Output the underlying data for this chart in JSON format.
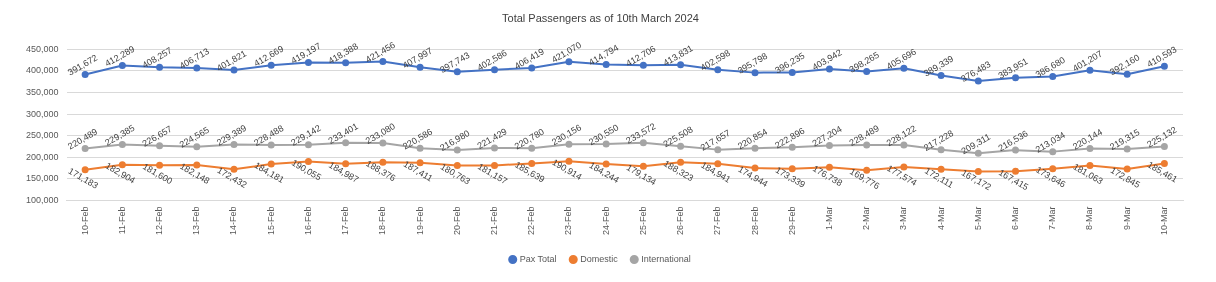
{
  "chart_data": {
    "type": "line",
    "title": "Total Passengers as of 10th March 2024",
    "categories": [
      "10-Feb",
      "11-Feb",
      "12-Feb",
      "13-Feb",
      "14-Feb",
      "15-Feb",
      "16-Feb",
      "17-Feb",
      "18-Feb",
      "19-Feb",
      "20-Feb",
      "21-Feb",
      "22-Feb",
      "23-Feb",
      "24-Feb",
      "25-Feb",
      "26-Feb",
      "27-Feb",
      "28-Feb",
      "29-Feb",
      "1-Mar",
      "2-Mar",
      "3-Mar",
      "4-Mar",
      "5-Mar",
      "6-Mar",
      "7-Mar",
      "8-Mar",
      "9-Mar",
      "10-Mar"
    ],
    "series": [
      {
        "name": "Pax Total",
        "color": "#4472c4",
        "values": [
          391672,
          412289,
          408257,
          406713,
          401821,
          412669,
          419197,
          418388,
          421456,
          407997,
          397743,
          402586,
          406419,
          421070,
          414794,
          412706,
          413831,
          402598,
          395798,
          396235,
          403942,
          398265,
          405696,
          389339,
          376483,
          383951,
          386680,
          401207,
          392160,
          410593
        ],
        "value_labels": [
          "391,672",
          "412,289",
          "408,257",
          "406,713",
          "401,821",
          "412,669",
          "419,197",
          "418,388",
          "421,456",
          "407,997",
          "397,743",
          "402,586",
          "406,419",
          "421,070",
          "414,794",
          "412,706",
          "413,831",
          "402,598",
          "395,798",
          "396,235",
          "403,942",
          "398,265",
          "405,696",
          "389,339",
          "376,483",
          "383,951",
          "386,680",
          "401,207",
          "392,160",
          "410,593"
        ]
      },
      {
        "name": "Domestic",
        "color": "#ed7d31",
        "values": [
          171183,
          182904,
          181600,
          182148,
          172432,
          184181,
          190055,
          184987,
          188376,
          187411,
          180763,
          181157,
          185639,
          190914,
          184244,
          179134,
          188323,
          184941,
          174944,
          173339,
          176738,
          169776,
          177574,
          172111,
          167172,
          167415,
          173646,
          181063,
          172845,
          185461
        ],
        "value_labels": [
          "171,183",
          "182,904",
          "181,600",
          "182,148",
          "172,432",
          "184,181",
          "190,055",
          "184,987",
          "188,376",
          "187,411",
          "180,763",
          "181,157",
          "185,639",
          "190,914",
          "184,244",
          "179,134",
          "188,323",
          "184,941",
          "174,944",
          "173,339",
          "176,738",
          "169,776",
          "177,574",
          "172,111",
          "167,172",
          "167,415",
          "173,646",
          "181,063",
          "172,845",
          "185,461"
        ]
      },
      {
        "name": "International",
        "color": "#a5a5a5",
        "values": [
          220489,
          229385,
          226657,
          224565,
          229389,
          228488,
          229142,
          233401,
          233080,
          220586,
          216980,
          221429,
          220780,
          230156,
          230550,
          233572,
          225508,
          217657,
          220854,
          222896,
          227204,
          228489,
          228122,
          217228,
          209311,
          216536,
          213034,
          220144,
          219315,
          225132
        ],
        "value_labels": [
          "220,489",
          "229,385",
          "226,657",
          "224,565",
          "229,389",
          "228,488",
          "229,142",
          "233,401",
          "233,080",
          "220,586",
          "216,980",
          "221,429",
          "220,780",
          "230,156",
          "230,550",
          "233,572",
          "225,508",
          "217,657",
          "220,854",
          "222,896",
          "227,204",
          "228,489",
          "228,122",
          "217,228",
          "209,311",
          "216,536",
          "213,034",
          "220,144",
          "219,315",
          "225,132"
        ]
      }
    ],
    "ylim": [
      100000,
      450000
    ],
    "yticks": [
      {
        "value": 100000,
        "label": "100,000"
      },
      {
        "value": 150000,
        "label": "150,000"
      },
      {
        "value": 200000,
        "label": "200,000"
      },
      {
        "value": 250000,
        "label": "250,000"
      },
      {
        "value": 300000,
        "label": "300,000"
      },
      {
        "value": 350000,
        "label": "350,000"
      },
      {
        "value": 400000,
        "label": "400,000"
      },
      {
        "value": 450000,
        "label": "450,000"
      }
    ],
    "grid": "y",
    "legend": "bottom",
    "marker": "circle",
    "line_style": "solid"
  }
}
